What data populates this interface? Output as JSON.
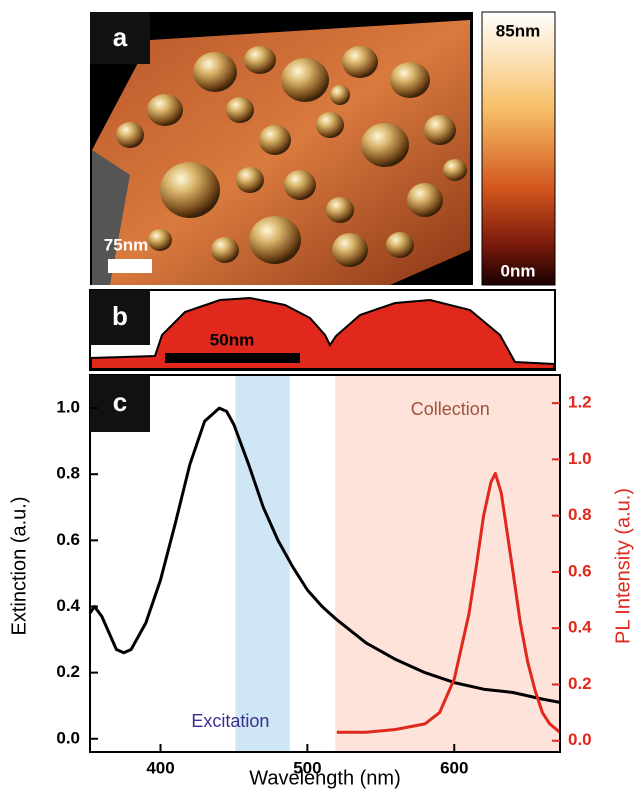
{
  "panels": {
    "a": {
      "label": "a",
      "scale_bar": "75nm",
      "colorbar_max": "85nm",
      "colorbar_min": "0nm"
    },
    "b": {
      "label": "b",
      "scale_bar": "50nm"
    }
  },
  "chart_data": {
    "type": "line",
    "label": "c",
    "xlabel": "Wavelength (nm)",
    "ylabel": "Extinction (a.u.)",
    "y2label": "PL Intensity (a.u.)",
    "xlim": [
      352,
      672
    ],
    "xticks": [
      400,
      500,
      600
    ],
    "ylim": [
      -0.04,
      1.1
    ],
    "yticks": [
      {
        "value": 0,
        "label": "0.0"
      },
      0.2,
      0.4,
      0.6,
      0.8,
      {
        "value": 1,
        "label": "1.0"
      }
    ],
    "y2lim": [
      -0.04,
      1.3
    ],
    "y2ticks": [
      {
        "value": 0,
        "label": "0.0"
      },
      0.2,
      0.4,
      0.6,
      0.8,
      {
        "value": 1,
        "label": "1.0"
      },
      1.2
    ],
    "y2color": "#e0281c",
    "bands": [
      {
        "label": "Excitation",
        "range": [
          451,
          488
        ],
        "color": "#cfe6f5",
        "text_color": "#3a2f90"
      },
      {
        "label": "Collection",
        "range": [
          519,
          672
        ],
        "color": "#fde3da",
        "text_color": "#a0523d"
      }
    ],
    "series": [
      {
        "color": "#000000",
        "x": [
          352,
          355,
          360,
          370,
          375,
          380,
          390,
          400,
          410,
          420,
          430,
          440,
          445,
          450,
          460,
          470,
          480,
          490,
          500,
          510,
          520,
          540,
          560,
          580,
          600,
          620,
          640,
          660,
          672
        ],
        "values": [
          0.38,
          0.4,
          0.37,
          0.27,
          0.26,
          0.27,
          0.35,
          0.48,
          0.65,
          0.83,
          0.96,
          1.0,
          0.99,
          0.95,
          0.83,
          0.7,
          0.6,
          0.52,
          0.45,
          0.4,
          0.36,
          0.29,
          0.24,
          0.2,
          0.17,
          0.15,
          0.14,
          0.12,
          0.11
        ]
      },
      {
        "color": "#e0281c",
        "axis": "y2",
        "x": [
          520,
          540,
          560,
          580,
          590,
          600,
          610,
          615,
          620,
          625,
          628,
          632,
          640,
          645,
          650,
          655,
          660,
          665,
          672
        ],
        "values": [
          0.03,
          0.03,
          0.04,
          0.06,
          0.1,
          0.22,
          0.45,
          0.62,
          0.8,
          0.92,
          0.95,
          0.88,
          0.6,
          0.42,
          0.28,
          0.18,
          0.1,
          0.06,
          0.03
        ]
      }
    ]
  }
}
